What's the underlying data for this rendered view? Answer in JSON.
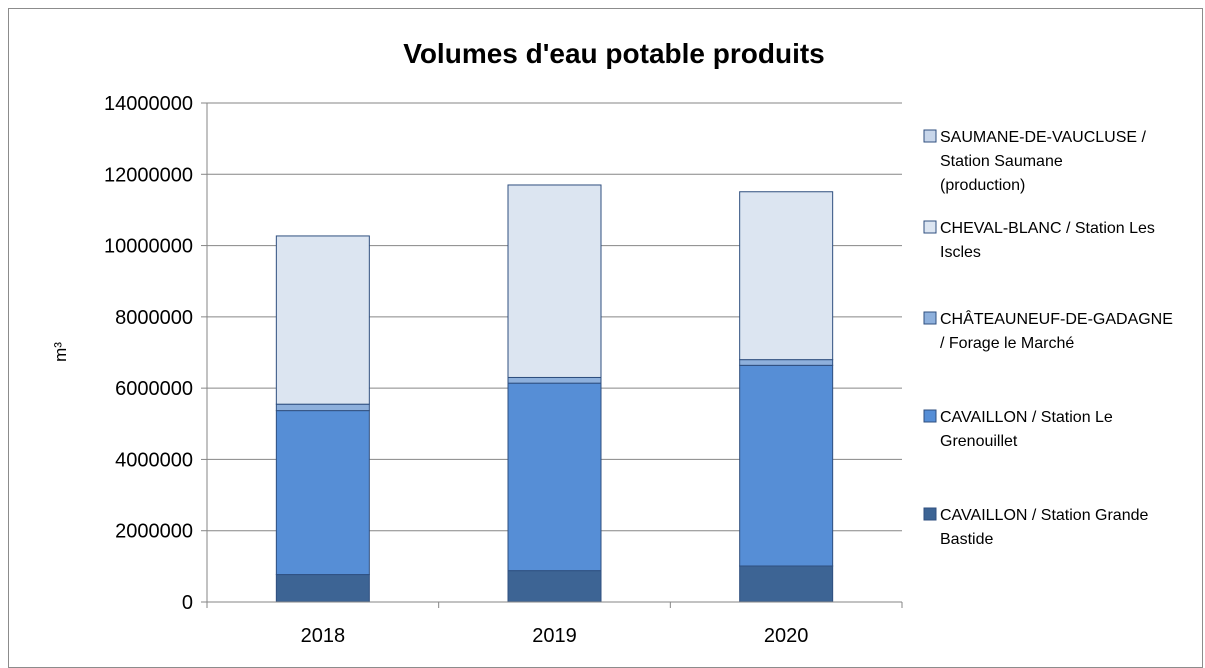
{
  "chart_data": {
    "type": "bar",
    "stacked": true,
    "title": "Volumes d'eau potable produits",
    "xlabel": "",
    "ylabel": "m³",
    "categories": [
      "2018",
      "2019",
      "2020"
    ],
    "ylim": [
      0,
      14000000
    ],
    "yticks": [
      0,
      2000000,
      4000000,
      6000000,
      8000000,
      10000000,
      12000000,
      14000000
    ],
    "ytick_labels": [
      "0",
      "2000000",
      "4000000",
      "6000000",
      "8000000",
      "10000000",
      "12000000",
      "14000000"
    ],
    "grid": true,
    "legend_position": "right",
    "series": [
      {
        "name": "CAVAILLON / Station Grande Bastide",
        "legend_lines": [
          "CAVAILLON / Station Grande",
          "Bastide"
        ],
        "color": "#3D6494",
        "values": [
          770000,
          880000,
          1010000
        ]
      },
      {
        "name": "CAVAILLON / Station Le Grenouillet",
        "legend_lines": [
          "CAVAILLON / Station Le",
          "Grenouillet"
        ],
        "color": "#568ED6",
        "values": [
          4600000,
          5260000,
          5630000
        ]
      },
      {
        "name": "CHÂTEAUNEUF-DE-GADAGNE / Forage le Marché",
        "legend_lines": [
          "CHÂTEAUNEUF-DE-GADAGNE",
          "/ Forage le Marché"
        ],
        "color": "#8EB0DC",
        "values": [
          180000,
          160000,
          160000
        ]
      },
      {
        "name": "CHEVAL-BLANC / Station Les Iscles",
        "legend_lines": [
          "CHEVAL-BLANC / Station Les",
          "Iscles"
        ],
        "color": "#DCE5F1",
        "values": [
          4720000,
          5400000,
          4710000
        ]
      },
      {
        "name": "SAUMANE-DE-VAUCLUSE / Station Saumane (production)",
        "legend_lines": [
          "SAUMANE-DE-VAUCLUSE /",
          "Station Saumane",
          "(production)"
        ],
        "color": "#C8D6EA",
        "values": [
          0,
          0,
          0
        ]
      }
    ]
  }
}
